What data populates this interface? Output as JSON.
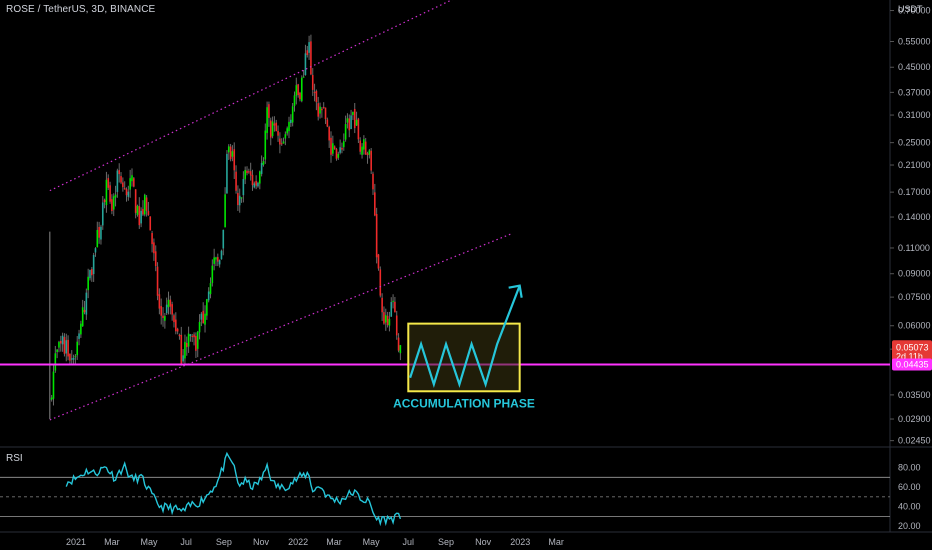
{
  "header": {
    "symbol_line": "ROSE / TetherUS, 3D, BINANCE",
    "unit": "USDT",
    "rsi_label": "RSI"
  },
  "annotation": {
    "label": "ACCUMULATION PHASE"
  },
  "price_tags": {
    "last_price": "0.05073",
    "countdown": "2d 11h",
    "support_price": "0.04435"
  },
  "colors": {
    "up": "#26a69a",
    "up_bright": "#00e600",
    "down": "#ef2a2a",
    "channel": "#d030d0",
    "support": "#ff33ff",
    "rsi_line": "#26c6da",
    "box_border": "#f5e94a",
    "box_fill": "#3a3410",
    "accumulation": "#26c6da"
  },
  "chart_data": [
    {
      "type": "candlestick",
      "y_scale": "log",
      "ylim": [
        0.0235,
        0.76
      ],
      "y_ticks": [
        "0.70000",
        "0.55000",
        "0.45000",
        "0.37000",
        "0.31000",
        "0.25000",
        "0.21000",
        "0.17000",
        "0.14000",
        "0.11000",
        "0.09000",
        "0.07500",
        "0.06000",
        "0.05000",
        "0.03500",
        "0.02900",
        "0.02450"
      ],
      "y_tick_values": [
        0.7,
        0.55,
        0.45,
        0.37,
        0.31,
        0.25,
        0.21,
        0.17,
        0.14,
        0.11,
        0.09,
        0.075,
        0.06,
        0.05,
        0.035,
        0.029,
        0.0245
      ],
      "x_ticks": [
        "2021",
        "Mar",
        "May",
        "Jul",
        "Sep",
        "Nov",
        "2022",
        "Mar",
        "May",
        "Jul",
        "Sep",
        "Nov",
        "2023",
        "Mar"
      ],
      "x_tick_dates": [
        "2021-01-01",
        "2021-03-01",
        "2021-05-01",
        "2021-07-01",
        "2021-09-01",
        "2021-11-01",
        "2022-01-01",
        "2022-03-01",
        "2022-05-01",
        "2022-07-01",
        "2022-09-01",
        "2022-11-01",
        "2023-01-01",
        "2023-03-01"
      ],
      "close_path": [
        [
          "2020-11-19",
          0.033
        ],
        [
          "2020-11-28",
          0.047
        ],
        [
          "2020-12-10",
          0.052
        ],
        [
          "2020-12-22",
          0.048
        ],
        [
          "2021-01-01",
          0.047
        ],
        [
          "2021-01-10",
          0.062
        ],
        [
          "2021-01-20",
          0.08
        ],
        [
          "2021-02-01",
          0.11
        ],
        [
          "2021-02-10",
          0.13
        ],
        [
          "2021-02-19",
          0.18
        ],
        [
          "2021-02-28",
          0.145
        ],
        [
          "2021-03-12",
          0.2
        ],
        [
          "2021-03-21",
          0.165
        ],
        [
          "2021-04-02",
          0.185
        ],
        [
          "2021-04-14",
          0.135
        ],
        [
          "2021-04-26",
          0.16
        ],
        [
          "2021-05-05",
          0.12
        ],
        [
          "2021-05-13",
          0.085
        ],
        [
          "2021-05-20",
          0.062
        ],
        [
          "2021-06-02",
          0.07
        ],
        [
          "2021-06-14",
          0.06
        ],
        [
          "2021-06-23",
          0.048
        ],
        [
          "2021-07-05",
          0.056
        ],
        [
          "2021-07-17",
          0.053
        ],
        [
          "2021-07-29",
          0.065
        ],
        [
          "2021-08-10",
          0.09
        ],
        [
          "2021-08-22",
          0.1
        ],
        [
          "2021-08-31",
          0.12
        ],
        [
          "2021-09-06",
          0.24
        ],
        [
          "2021-09-15",
          0.22
        ],
        [
          "2021-09-24",
          0.145
        ],
        [
          "2021-10-06",
          0.2
        ],
        [
          "2021-10-15",
          0.19
        ],
        [
          "2021-10-24",
          0.175
        ],
        [
          "2021-11-05",
          0.23
        ],
        [
          "2021-11-11",
          0.32
        ],
        [
          "2021-11-17",
          0.28
        ],
        [
          "2021-11-26",
          0.27
        ],
        [
          "2021-12-04",
          0.23
        ],
        [
          "2021-12-13",
          0.27
        ],
        [
          "2021-12-25",
          0.36
        ],
        [
          "2022-01-03",
          0.37
        ],
        [
          "2022-01-12",
          0.45
        ],
        [
          "2022-01-18",
          0.58
        ],
        [
          "2022-01-24",
          0.4
        ],
        [
          "2022-02-02",
          0.32
        ],
        [
          "2022-02-11",
          0.35
        ],
        [
          "2022-02-20",
          0.25
        ],
        [
          "2022-03-01",
          0.24
        ],
        [
          "2022-03-13",
          0.23
        ],
        [
          "2022-03-22",
          0.28
        ],
        [
          "2022-04-03",
          0.31
        ],
        [
          "2022-04-12",
          0.25
        ],
        [
          "2022-04-24",
          0.24
        ],
        [
          "2022-05-03",
          0.2
        ],
        [
          "2022-05-09",
          0.115
        ],
        [
          "2022-05-15",
          0.083
        ],
        [
          "2022-05-24",
          0.06
        ],
        [
          "2022-06-02",
          0.069
        ],
        [
          "2022-06-08",
          0.067
        ],
        [
          "2022-06-14",
          0.05
        ],
        [
          "2022-06-20",
          0.052
        ]
      ],
      "channel_lines": [
        {
          "from": [
            "2020-11-19",
            0.172
          ],
          "to": [
            "2022-12-18",
            0.95
          ]
        },
        {
          "from": [
            "2020-11-19",
            0.0288
          ],
          "to": [
            "2022-12-18",
            0.123
          ]
        }
      ],
      "support_level": 0.04435,
      "accumulation_box": {
        "from": "2022-07-01",
        "to": "2022-12-31",
        "low": 0.036,
        "high": 0.061
      },
      "projection_zigzag": [
        [
          "2022-07-04",
          0.04
        ],
        [
          "2022-07-22",
          0.052
        ],
        [
          "2022-08-12",
          0.038
        ],
        [
          "2022-09-01",
          0.052
        ],
        [
          "2022-09-23",
          0.038
        ],
        [
          "2022-10-13",
          0.052
        ],
        [
          "2022-11-05",
          0.038
        ],
        [
          "2022-11-24",
          0.052
        ],
        [
          "2022-12-31",
          0.082
        ]
      ]
    },
    {
      "type": "line",
      "name": "RSI",
      "ylim": [
        14,
        100
      ],
      "y_ticks": [
        "80.00",
        "60.00",
        "40.00",
        "20.00"
      ],
      "y_tick_values": [
        80,
        60,
        40,
        20
      ],
      "bands": [
        70,
        50,
        30
      ],
      "points": [
        [
          "2020-12-16",
          65
        ],
        [
          "2021-01-01",
          69
        ],
        [
          "2021-01-20",
          77
        ],
        [
          "2021-02-01",
          74
        ],
        [
          "2021-02-19",
          81
        ],
        [
          "2021-03-06",
          69
        ],
        [
          "2021-03-21",
          82
        ],
        [
          "2021-04-02",
          68
        ],
        [
          "2021-04-18",
          70
        ],
        [
          "2021-04-30",
          58
        ],
        [
          "2021-05-10",
          47
        ],
        [
          "2021-05-20",
          40
        ],
        [
          "2021-06-10",
          38
        ],
        [
          "2021-06-26",
          35
        ],
        [
          "2021-07-10",
          42
        ],
        [
          "2021-07-22",
          44
        ],
        [
          "2021-08-05",
          52
        ],
        [
          "2021-08-22",
          66
        ],
        [
          "2021-09-06",
          90
        ],
        [
          "2021-09-15",
          86
        ],
        [
          "2021-09-25",
          62
        ],
        [
          "2021-10-05",
          66
        ],
        [
          "2021-10-20",
          60
        ],
        [
          "2021-11-04",
          70
        ],
        [
          "2021-11-11",
          83
        ],
        [
          "2021-11-20",
          64
        ],
        [
          "2021-12-04",
          59
        ],
        [
          "2021-12-18",
          63
        ],
        [
          "2022-01-03",
          70
        ],
        [
          "2022-01-18",
          74
        ],
        [
          "2022-01-26",
          55
        ],
        [
          "2022-02-05",
          62
        ],
        [
          "2022-02-20",
          49
        ],
        [
          "2022-03-10",
          46
        ],
        [
          "2022-03-22",
          51
        ],
        [
          "2022-04-02",
          55
        ],
        [
          "2022-04-15",
          48
        ],
        [
          "2022-04-28",
          44
        ],
        [
          "2022-05-09",
          27
        ],
        [
          "2022-05-24",
          27
        ],
        [
          "2022-06-05",
          28
        ],
        [
          "2022-06-20",
          30
        ]
      ]
    }
  ]
}
